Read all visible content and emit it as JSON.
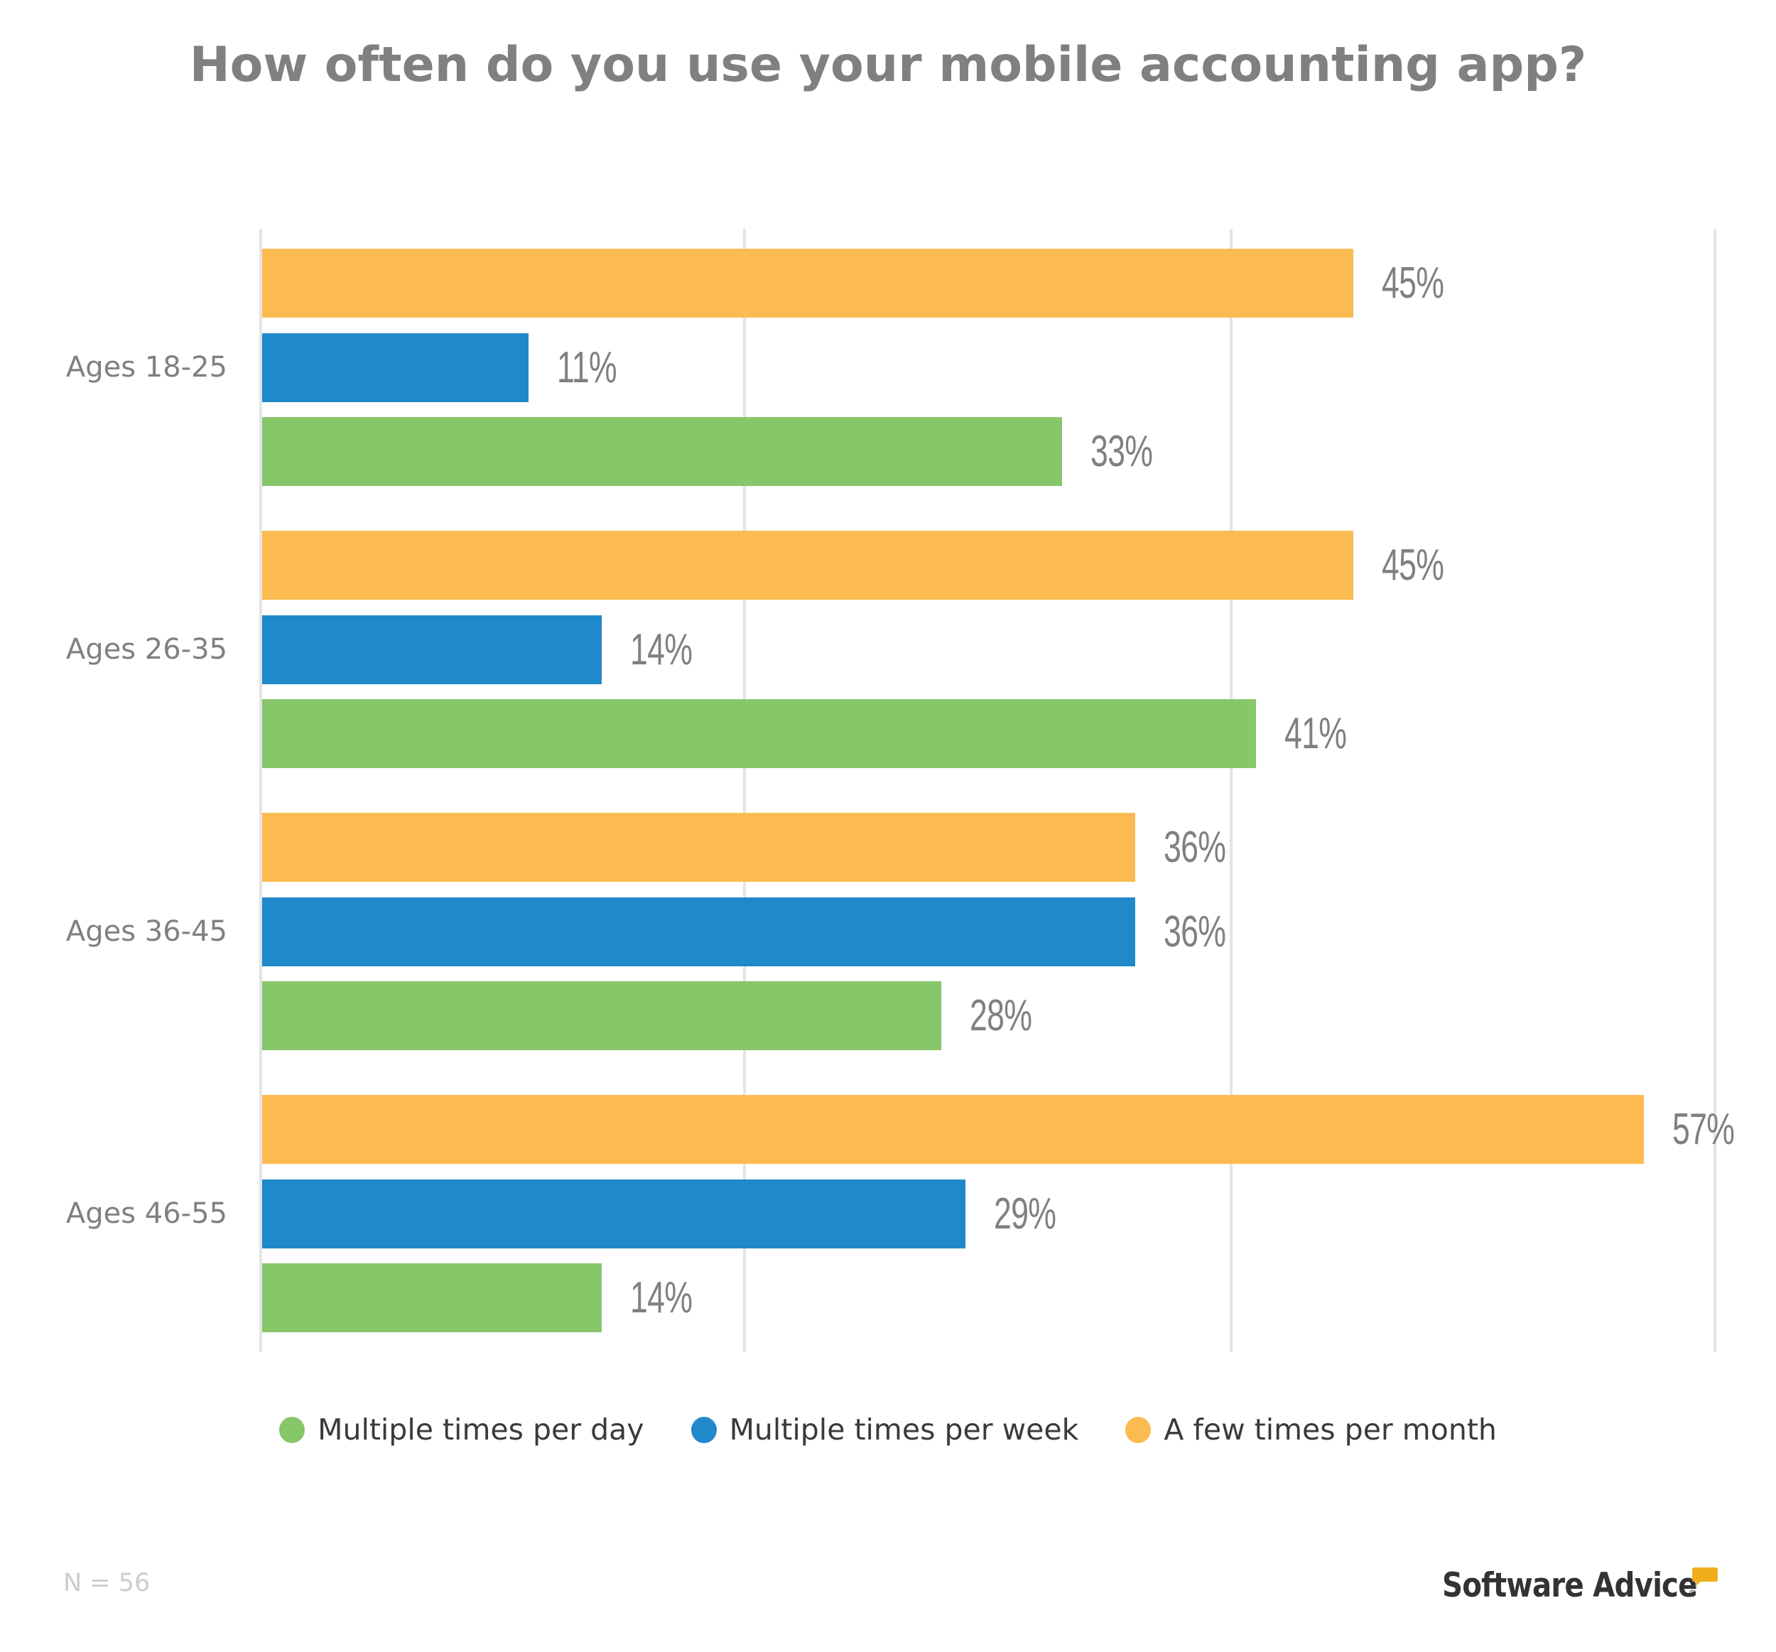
{
  "title": "How often do you use your mobile accounting app?",
  "colors": {
    "multiple_per_day": "#88c66a",
    "multiple_per_week": "#2089c9",
    "few_per_month": "#fbbb50",
    "gridline": "#e4e4e4",
    "label_text": "#808080",
    "legend_text": "#3a3a3a",
    "footnote_text": "#cccccc",
    "logo_accent": "#f0ad1c"
  },
  "legend": {
    "items": [
      {
        "label": "Multiple times per day",
        "color": "#88c66a"
      },
      {
        "label": "Multiple times per week",
        "color": "#2089c9"
      },
      {
        "label": "A few times per month",
        "color": "#fbbb50"
      }
    ]
  },
  "groups": [
    {
      "label": "Ages 18-25",
      "bars": [
        {
          "series": "A few times per month",
          "value": 45,
          "label": "45%"
        },
        {
          "series": "Multiple times per week",
          "value": 11,
          "label": "11%"
        },
        {
          "series": "Multiple times per day",
          "value": 33,
          "label": "33%"
        }
      ]
    },
    {
      "label": "Ages 26-35",
      "bars": [
        {
          "series": "A few times per month",
          "value": 45,
          "label": "45%"
        },
        {
          "series": "Multiple times per week",
          "value": 14,
          "label": "14%"
        },
        {
          "series": "Multiple times per day",
          "value": 41,
          "label": "41%"
        }
      ]
    },
    {
      "label": "Ages 36-45",
      "bars": [
        {
          "series": "A few times per month",
          "value": 36,
          "label": "36%"
        },
        {
          "series": "Multiple times per week",
          "value": 36,
          "label": "36%"
        },
        {
          "series": "Multiple times per day",
          "value": 28,
          "label": "28%"
        }
      ]
    },
    {
      "label": "Ages 46-55",
      "bars": [
        {
          "series": "A few times per month",
          "value": 57,
          "label": "57%"
        },
        {
          "series": "Multiple times per week",
          "value": 29,
          "label": "29%"
        },
        {
          "series": "Multiple times per day",
          "value": 14,
          "label": "14%"
        }
      ]
    }
  ],
  "footnote": "N = 56",
  "logo": {
    "text": "Software Advice",
    "registered": "®"
  },
  "chart_data": {
    "type": "bar",
    "orientation": "horizontal",
    "title": "How often do you use your mobile accounting app?",
    "categories": [
      "Ages 18-25",
      "Ages 26-35",
      "Ages 36-45",
      "Ages 46-55"
    ],
    "series": [
      {
        "name": "Multiple times per day",
        "color": "#88c66a",
        "values": [
          33,
          41,
          28,
          14
        ]
      },
      {
        "name": "Multiple times per week",
        "color": "#2089c9",
        "values": [
          11,
          14,
          36,
          29
        ]
      },
      {
        "name": "A few times per month",
        "color": "#fbbb50",
        "values": [
          45,
          45,
          36,
          57
        ]
      }
    ],
    "xlabel": "",
    "ylabel": "",
    "xlim": [
      0,
      60
    ],
    "gridlines_at": [
      0,
      20,
      40,
      60
    ],
    "tick_labels_shown": false,
    "data_labels": true,
    "value_format": "percent",
    "grid": true,
    "legend_position": "bottom",
    "annotations": [
      "N = 56"
    ]
  }
}
